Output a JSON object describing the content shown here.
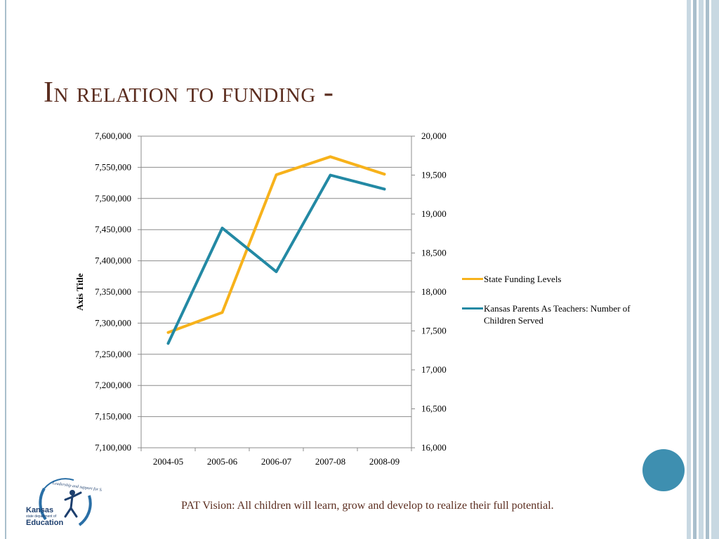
{
  "slide": {
    "title": "In relation to funding -",
    "vision_text": "PAT Vision:  All children will learn, grow and develop to realize their full potential.",
    "logo": {
      "icon": "kansas-education-logo",
      "line1": "Kansas",
      "line2": "state department of",
      "line3": "Education",
      "tagline": "Leadership and support for Student Success"
    },
    "colors": {
      "title": "#5b2d1f",
      "series_funding": "#f7b21b",
      "series_children": "#2389a4",
      "accent_circle": "#3e8fb0"
    }
  },
  "chart_data": {
    "type": "line",
    "categories": [
      "2004-05",
      "2005-06",
      "2006-07",
      "2007-08",
      "2008-09"
    ],
    "ylabel": "Axis Title",
    "ylim": [
      7100000,
      7600000
    ],
    "y2lim": [
      16000,
      20000
    ],
    "y_ticks": [
      "7,100,000",
      "7,150,000",
      "7,200,000",
      "7,250,000",
      "7,300,000",
      "7,350,000",
      "7,400,000",
      "7,450,000",
      "7,500,000",
      "7,550,000",
      "7,600,000"
    ],
    "y2_ticks": [
      "16,000",
      "16,500",
      "17,000",
      "17,500",
      "18,000",
      "18,500",
      "19,000",
      "19,500",
      "20,000"
    ],
    "grid": true,
    "legend_position": "right",
    "series": [
      {
        "name": "State Funding Levels",
        "axis": "left",
        "values": [
          7285000,
          7317000,
          7538000,
          7567000,
          7539000
        ]
      },
      {
        "name": "Kansas Parents As Teachers: Number of Children Served",
        "axis": "right",
        "values": [
          17340,
          18820,
          18260,
          19500,
          19320
        ]
      }
    ]
  }
}
